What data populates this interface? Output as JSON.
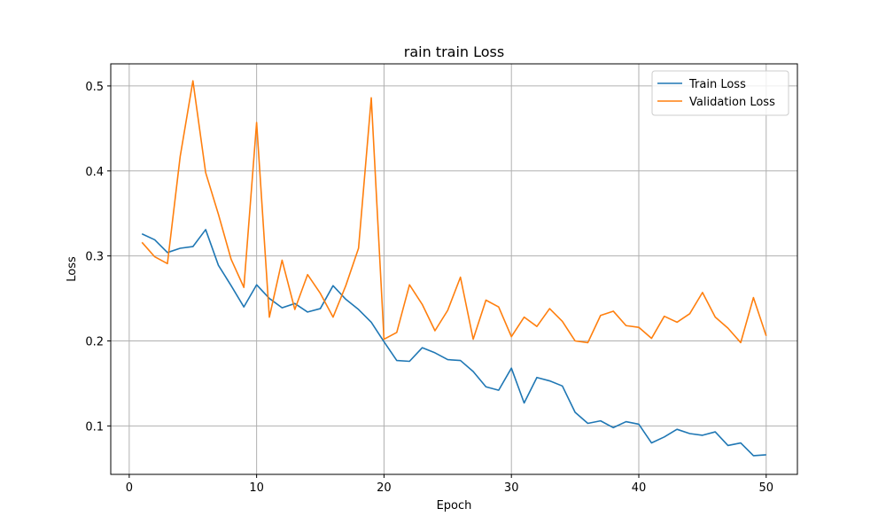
{
  "chart_data": {
    "type": "line",
    "title": "rain train Loss",
    "xlabel": "Epoch",
    "ylabel": "Loss",
    "xlim": [
      -1.45,
      52.45
    ],
    "ylim": [
      0.043,
      0.526
    ],
    "xticks": [
      0,
      10,
      20,
      30,
      40,
      50
    ],
    "yticks": [
      0.1,
      0.2,
      0.3,
      0.4,
      0.5
    ],
    "xtick_labels": [
      "0",
      "10",
      "20",
      "30",
      "40",
      "50"
    ],
    "ytick_labels": [
      "0.1",
      "0.2",
      "0.3",
      "0.4",
      "0.5"
    ],
    "grid": true,
    "legend_position": "top-right",
    "x": [
      1,
      2,
      3,
      4,
      5,
      6,
      7,
      8,
      9,
      10,
      11,
      12,
      13,
      14,
      15,
      16,
      17,
      18,
      19,
      20,
      21,
      22,
      23,
      24,
      25,
      26,
      27,
      28,
      29,
      30,
      31,
      32,
      33,
      34,
      35,
      36,
      37,
      38,
      39,
      40,
      41,
      42,
      43,
      44,
      45,
      46,
      47,
      48,
      49,
      50
    ],
    "series": [
      {
        "name": "Train Loss",
        "color": "#1f77b4",
        "values": [
          0.326,
          0.319,
          0.304,
          0.309,
          0.311,
          0.331,
          0.289,
          0.265,
          0.24,
          0.266,
          0.25,
          0.239,
          0.244,
          0.234,
          0.238,
          0.265,
          0.249,
          0.237,
          0.222,
          0.199,
          0.177,
          0.176,
          0.192,
          0.186,
          0.178,
          0.177,
          0.164,
          0.146,
          0.142,
          0.168,
          0.127,
          0.157,
          0.153,
          0.147,
          0.116,
          0.103,
          0.106,
          0.098,
          0.105,
          0.102,
          0.08,
          0.087,
          0.096,
          0.091,
          0.089,
          0.093,
          0.077,
          0.08,
          0.065,
          0.066
        ]
      },
      {
        "name": "Validation Loss",
        "color": "#ff7f0e",
        "values": [
          0.316,
          0.299,
          0.291,
          0.417,
          0.506,
          0.398,
          0.349,
          0.296,
          0.263,
          0.457,
          0.228,
          0.295,
          0.237,
          0.278,
          0.256,
          0.228,
          0.265,
          0.309,
          0.486,
          0.202,
          0.21,
          0.266,
          0.243,
          0.212,
          0.236,
          0.275,
          0.202,
          0.248,
          0.24,
          0.205,
          0.228,
          0.217,
          0.238,
          0.223,
          0.2,
          0.198,
          0.23,
          0.235,
          0.218,
          0.216,
          0.203,
          0.229,
          0.222,
          0.232,
          0.257,
          0.228,
          0.215,
          0.198,
          0.251,
          0.206
        ]
      }
    ]
  }
}
